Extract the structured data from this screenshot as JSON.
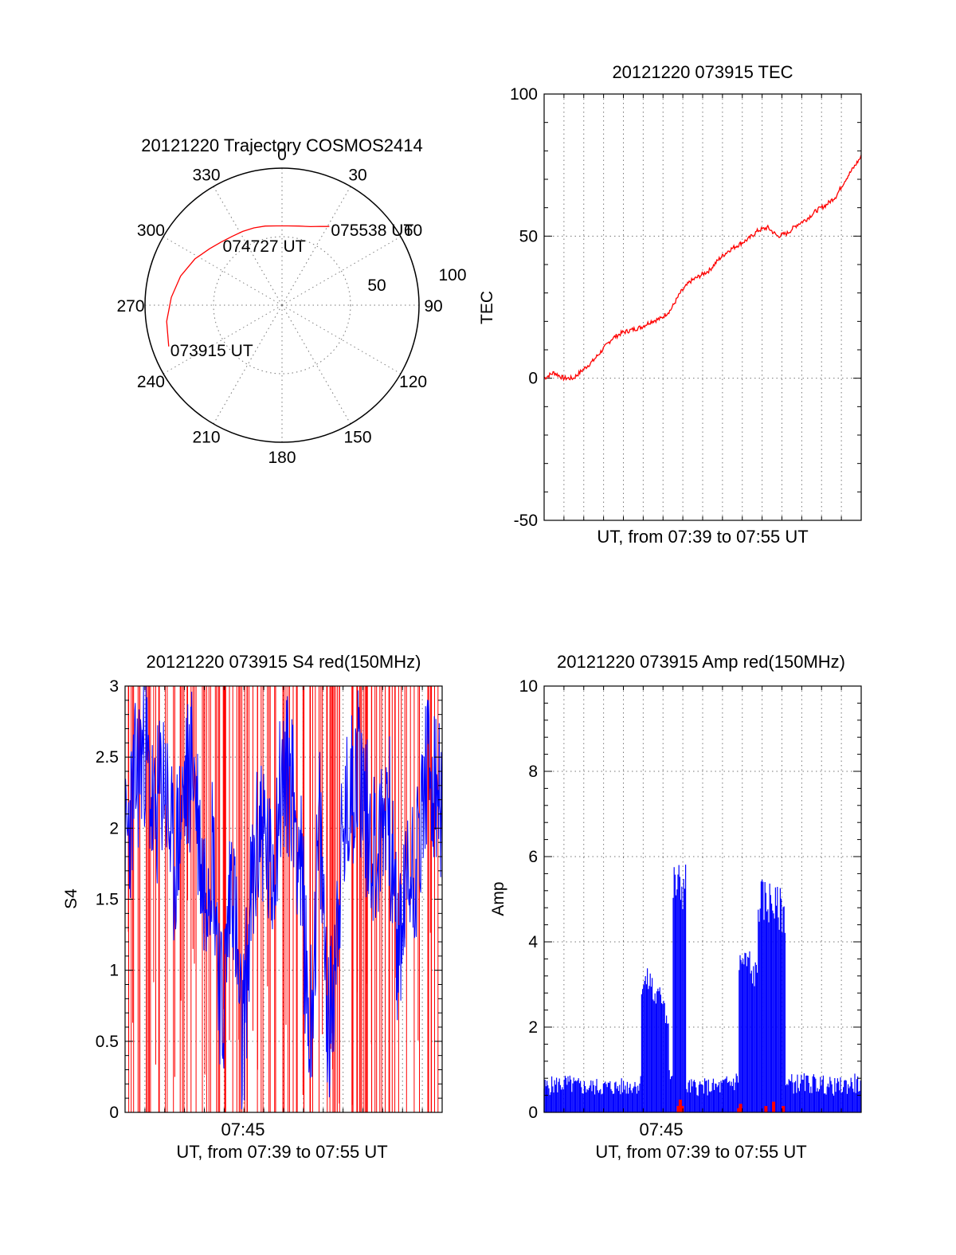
{
  "chart_data": [
    {
      "type": "polar",
      "title": "20121220 Trajectory COSMOS2414",
      "angle_labels": [
        "0",
        "30",
        "60",
        "90",
        "120",
        "150",
        "180",
        "210",
        "240",
        "270",
        "300",
        "330"
      ],
      "angle_values": [
        0,
        30,
        60,
        90,
        120,
        150,
        180,
        210,
        240,
        270,
        300,
        330
      ],
      "radial_labels": [
        "50",
        "100"
      ],
      "radial_values": [
        50,
        100
      ],
      "rlim": [
        0,
        100
      ],
      "series": [
        {
          "color": "#ff0000",
          "azimuth": [
            250,
            262,
            274,
            286,
            298,
            308,
            316,
            324,
            332,
            340,
            348,
            356,
            4,
            12,
            20,
            26,
            31
          ],
          "radius": [
            88,
            85,
            81,
            77,
            72,
            67,
            64,
            62,
            61,
            60,
            59,
            58,
            58,
            59,
            61,
            64,
            67
          ]
        }
      ],
      "annotations": [
        {
          "text": "075538 UT",
          "azimuth": 31,
          "radius": 67
        },
        {
          "text": "074727 UT",
          "azimuth": 316,
          "radius": 64
        },
        {
          "text": "073915 UT",
          "azimuth": 250,
          "radius": 88
        }
      ]
    },
    {
      "type": "line",
      "title": "20121220 073915 TEC",
      "xlabel": "UT, from 07:39 to 07:55 UT",
      "ylabel": "TEC",
      "ylim": [
        -50,
        100
      ],
      "yticks": [
        -50,
        0,
        50,
        100
      ],
      "ytick_labels": [
        "-50",
        "0",
        "50",
        "100"
      ],
      "grid": true,
      "series": [
        {
          "color": "#ff0000",
          "x_minutes": [
            0,
            0.5,
            1,
            1.5,
            2,
            2.5,
            3,
            3.5,
            4,
            4.5,
            5,
            5.5,
            6,
            6.5,
            7,
            7.5,
            8,
            8.5,
            9,
            9.5,
            10,
            10.5,
            11,
            11.5,
            12,
            12.5,
            13,
            13.5,
            14,
            14.5,
            15,
            15.5,
            16,
            16.5
          ],
          "values": [
            0,
            2,
            0,
            0,
            3,
            6,
            10,
            14,
            16,
            17,
            18,
            20,
            21,
            24,
            30,
            34,
            36,
            38,
            42,
            45,
            47,
            49,
            52,
            53,
            50,
            51,
            54,
            56,
            59,
            61,
            64,
            70,
            75,
            80
          ]
        }
      ]
    },
    {
      "type": "line",
      "title": "20121220 073915 S4 red(150MHz)",
      "xlabel": "UT, from 07:39 to 07:55 UT",
      "ylabel": "S4",
      "ylim": [
        0,
        3
      ],
      "yticks": [
        0,
        0.5,
        1,
        1.5,
        2,
        2.5,
        3
      ],
      "ytick_labels": [
        "0",
        "0.5",
        "1",
        "1.5",
        "2",
        "2.5",
        "3"
      ],
      "xtick_labels": [
        "07:45"
      ],
      "grid": true,
      "series": [
        {
          "color": "#ff0000",
          "style": "spikes between 0 and 3, dense"
        },
        {
          "color": "#0000ff",
          "x_minutes": [
            0,
            0.5,
            1,
            1.5,
            2,
            2.5,
            3,
            3.5,
            4,
            4.5,
            5,
            5.5,
            6,
            6.5,
            7,
            7.5,
            8,
            8.5,
            9,
            9.5,
            10,
            10.5,
            11,
            11.5,
            12,
            12.5,
            13,
            13.5,
            14,
            14.5,
            15,
            15.5,
            16,
            16.5
          ],
          "values": [
            1.8,
            2.3,
            2.6,
            2.0,
            2.4,
            1.7,
            2.2,
            2.5,
            1.6,
            1.9,
            0.6,
            1.8,
            0.4,
            1.5,
            2.1,
            1.6,
            2.3,
            2.4,
            1.8,
            0.5,
            2.0,
            0.5,
            1.6,
            2.2,
            2.5,
            2.0,
            1.8,
            2.3,
            1.1,
            1.6,
            1.8,
            2.4,
            2.2,
            2.0
          ]
        }
      ]
    },
    {
      "type": "line",
      "title": "20121220 073915 Amp red(150MHz)",
      "xlabel": "UT, from 07:39 to 07:55 UT",
      "ylabel": "Amp",
      "ylim": [
        0,
        10
      ],
      "yticks": [
        0,
        2,
        4,
        6,
        8,
        10
      ],
      "ytick_labels": [
        "0",
        "2",
        "4",
        "6",
        "8",
        "10"
      ],
      "xtick_labels": [
        "07:45"
      ],
      "grid": true,
      "series": [
        {
          "color": "#0000ff",
          "x_minutes": [
            0,
            1,
            2,
            3,
            4,
            5,
            5.4,
            5.6,
            6.2,
            6.4,
            6.6,
            7.0,
            7.3,
            8,
            9,
            10,
            10.4,
            10.6,
            11,
            11.6,
            11.8,
            12.2,
            12.4,
            13,
            14,
            15,
            16,
            16.5
          ],
          "values": [
            0.7,
            0.8,
            0.7,
            0.7,
            0.7,
            0.8,
            3.4,
            3.0,
            2.5,
            1.2,
            0.8,
            5.9,
            0.7,
            0.7,
            0.7,
            0.9,
            3.9,
            3.6,
            0.8,
            5.5,
            5.3,
            5.2,
            0.8,
            0.8,
            0.8,
            0.7,
            0.8,
            0.7
          ]
        },
        {
          "color": "#ff0000",
          "x_minutes": [
            6.9,
            7.0,
            7.1,
            10.0,
            10.1,
            11.4,
            11.8,
            12.3
          ],
          "values": [
            0.15,
            0.3,
            0.15,
            0.1,
            0.2,
            0.15,
            0.25,
            0.15
          ]
        }
      ]
    }
  ]
}
